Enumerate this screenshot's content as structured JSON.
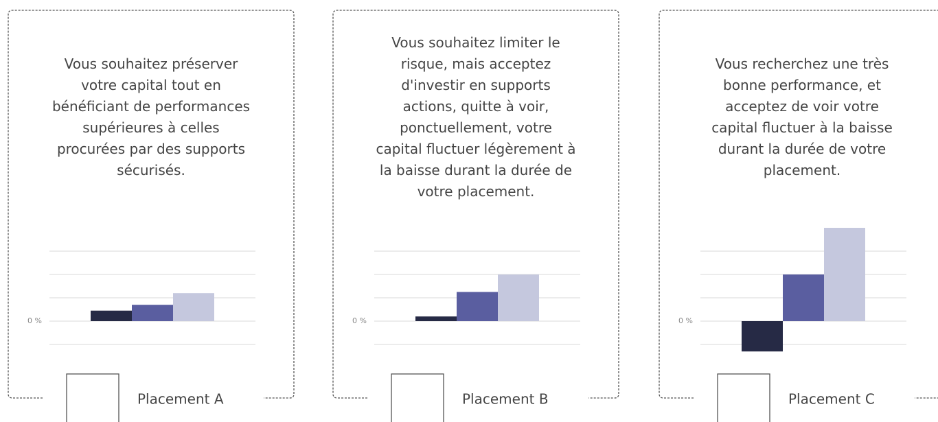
{
  "cards": [
    {
      "description": [
        "Vous souhaitez préserver",
        "votre capital tout en",
        "bénéficiant de performances",
        "supérieures à celles",
        "procurées par des supports",
        "sécurisés."
      ],
      "chart": {
        "type": "bar",
        "yticks": [
          {
            "value": 0,
            "label": "0 %"
          }
        ],
        "gridlines": [
          -1,
          1,
          2,
          3
        ],
        "values": [
          0.45,
          0.7,
          1.2
        ],
        "colors": [
          "#262a45",
          "#5a5ea0",
          "#c5c8de"
        ]
      },
      "label": "Placement A"
    },
    {
      "description": [
        "Vous souhaitez limiter le",
        "risque, mais acceptez",
        "d'investir en supports",
        "actions, quitte à voir,",
        "ponctuellement, votre",
        "capital fluctuer légèrement à",
        "la baisse durant la durée de",
        "votre placement."
      ],
      "chart": {
        "type": "bar",
        "yticks": [
          {
            "value": 0,
            "label": "0 %"
          }
        ],
        "gridlines": [
          -1,
          1,
          2,
          3
        ],
        "values": [
          0.2,
          1.25,
          2
        ],
        "colors": [
          "#262a45",
          "#5a5ea0",
          "#c5c8de"
        ]
      },
      "label": "Placement B"
    },
    {
      "description": [
        "Vous recherchez une très",
        "bonne performance, et",
        "acceptez de voir votre",
        "capital fluctuer à la baisse",
        "durant la durée de votre",
        "placement."
      ],
      "chart": {
        "type": "bar",
        "yticks": [
          {
            "value": 0,
            "label": "0 %"
          }
        ],
        "gridlines": [
          -1,
          1,
          2,
          3
        ],
        "values": [
          -1.3,
          2,
          4
        ],
        "colors": [
          "#262a45",
          "#5a5ea0",
          "#c5c8de"
        ]
      },
      "label": "Placement C"
    }
  ]
}
